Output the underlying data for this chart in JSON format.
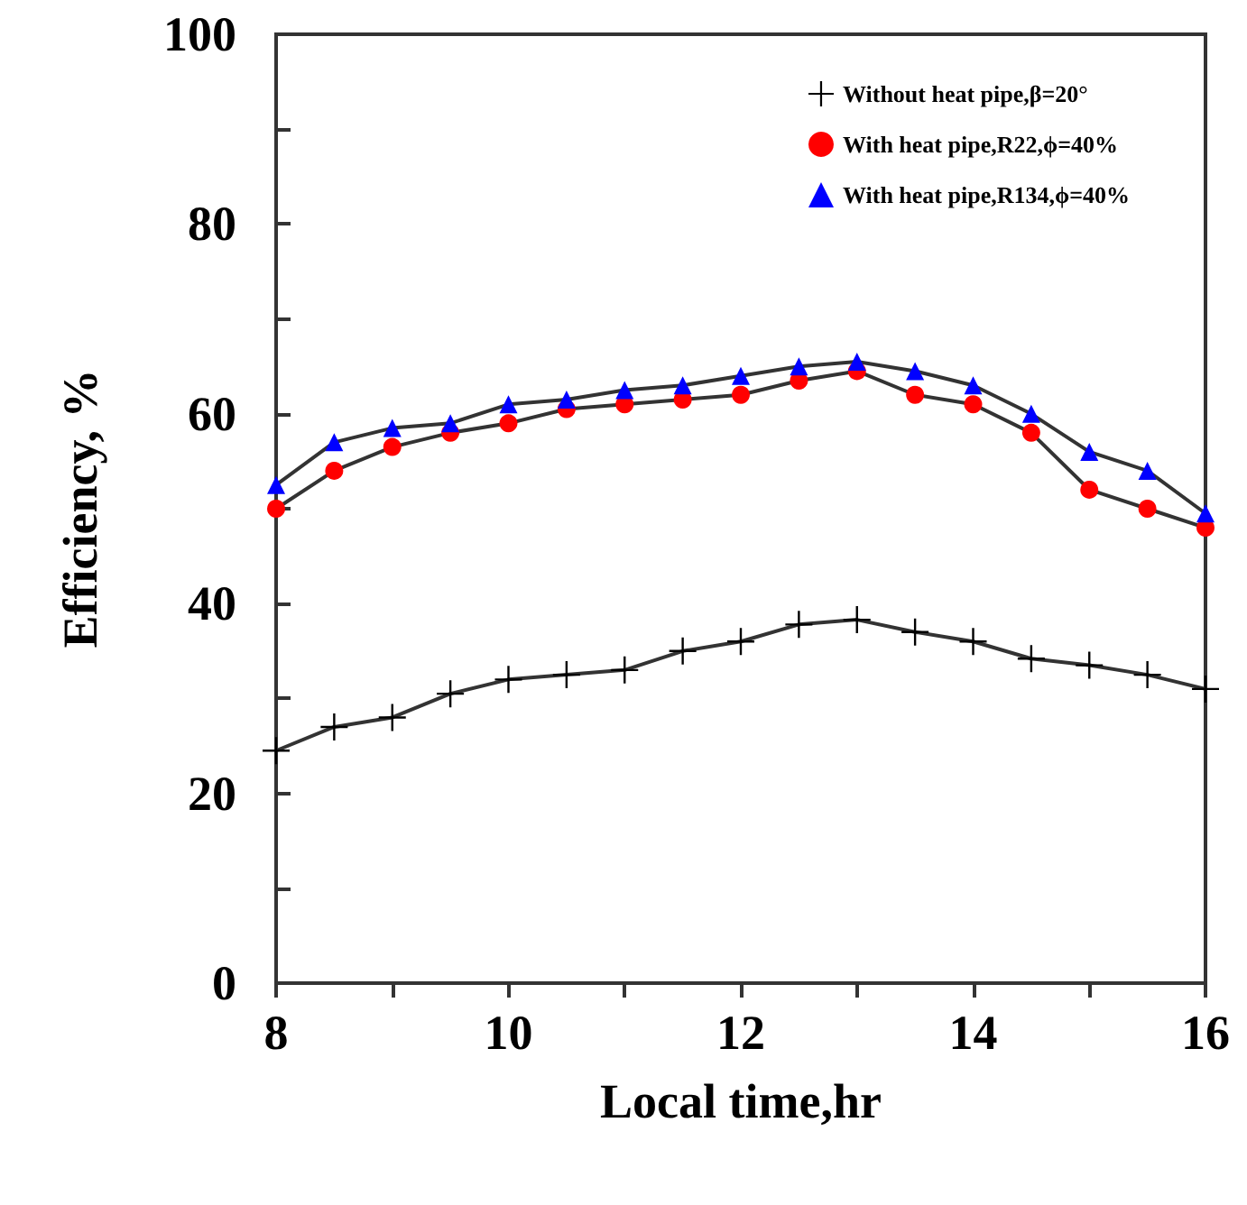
{
  "chart_data": {
    "type": "line",
    "xlabel": "Local time,hr",
    "ylabel": "Efficiency, %",
    "x": [
      8,
      8.5,
      9,
      9.5,
      10,
      10.5,
      11,
      11.5,
      12,
      12.5,
      13,
      13.5,
      14,
      14.5,
      15,
      15.5,
      16
    ],
    "series": [
      {
        "name": "Without heat pipe,β=20°",
        "color": "#000000",
        "marker": "cross",
        "values": [
          24.5,
          27,
          28,
          30.5,
          32,
          32.5,
          33,
          35,
          36,
          37.8,
          38.3,
          37,
          36,
          34.2,
          33.5,
          32.5,
          31
        ]
      },
      {
        "name": "With heat pipe,R22,ϕ=40%",
        "color": "#ff0000",
        "marker": "circle",
        "values": [
          50,
          54,
          56.5,
          58,
          59,
          60.5,
          61,
          61.5,
          62,
          63.5,
          64.5,
          62,
          61,
          58,
          52,
          50,
          48
        ]
      },
      {
        "name": "With heat pipe,R134,ϕ=40%",
        "color": "#0000ff",
        "marker": "triangle",
        "values": [
          52.5,
          57,
          58.5,
          59,
          61,
          61.5,
          62.5,
          63,
          64,
          65,
          65.5,
          64.5,
          63,
          60,
          56,
          54,
          49.5
        ]
      }
    ],
    "xlim": [
      8,
      16
    ],
    "xticks": [
      8,
      {
        "value": 9,
        "label": null
      },
      10,
      {
        "value": 11,
        "label": null
      },
      12,
      {
        "value": 13,
        "label": null
      },
      14,
      {
        "value": 15,
        "label": null
      },
      16
    ],
    "ylim": [
      0,
      100
    ],
    "yticks": [
      0,
      {
        "value": 10,
        "label": null
      },
      20,
      {
        "value": 30,
        "label": null
      },
      40,
      {
        "value": 50,
        "label": null
      },
      60,
      {
        "value": 70,
        "label": null
      },
      80,
      {
        "value": 90,
        "label": null
      },
      100
    ],
    "legend": "top right",
    "grid": false,
    "line_style": "solid"
  }
}
